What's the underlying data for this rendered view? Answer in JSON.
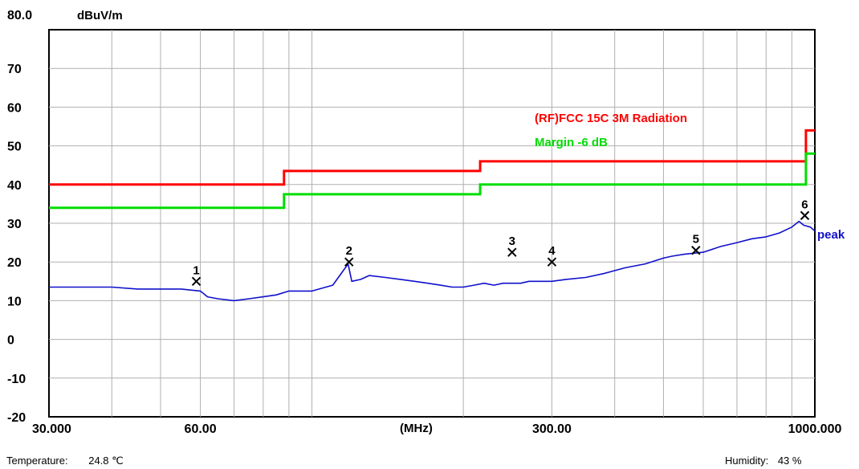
{
  "chart_data": {
    "type": "line",
    "y_unit": "dBuV/m",
    "x_unit": "(MHz)",
    "x_scale": "log",
    "xlim": [
      30,
      1000
    ],
    "ylim": [
      -20,
      80
    ],
    "y_top_label": "80.0",
    "y_ticks": [
      -20,
      -10,
      0,
      10,
      20,
      30,
      40,
      50,
      60,
      70
    ],
    "x_tick_labels": [
      {
        "value": 30,
        "text": "30.000"
      },
      {
        "value": 60,
        "text": "60.00"
      },
      {
        "value": 300,
        "text": "300.00"
      },
      {
        "value": 1000,
        "text": "1000.000"
      }
    ],
    "x_gridlines": [
      30,
      40,
      50,
      60,
      70,
      80,
      90,
      100,
      200,
      300,
      400,
      500,
      600,
      700,
      800,
      900,
      1000
    ],
    "grid": true,
    "limits": [
      {
        "name": "(RF)FCC 15C 3M Radiation",
        "color": "#ff0000",
        "steps": [
          [
            30,
            40.0
          ],
          [
            88,
            43.5
          ],
          [
            216,
            46.0
          ],
          [
            960,
            54.0
          ],
          [
            1000,
            54.0
          ]
        ]
      },
      {
        "name": "Margin -6 dB",
        "color": "#00dd00",
        "steps": [
          [
            30,
            34.0
          ],
          [
            88,
            37.5
          ],
          [
            216,
            40.0
          ],
          [
            960,
            48.0
          ],
          [
            1000,
            48.0
          ]
        ]
      }
    ],
    "series": [
      {
        "name": "peak",
        "color": "#1010cc",
        "x": [
          30,
          35,
          40,
          45,
          50,
          55,
          60,
          62,
          65,
          70,
          75,
          80,
          85,
          90,
          100,
          110,
          118,
          120,
          125,
          130,
          140,
          150,
          160,
          170,
          180,
          190,
          200,
          210,
          220,
          230,
          240,
          250,
          260,
          270,
          280,
          290,
          300,
          320,
          350,
          380,
          420,
          460,
          500,
          520,
          550,
          600,
          650,
          700,
          750,
          800,
          850,
          900,
          930,
          950,
          980,
          1000
        ],
        "y": [
          13.5,
          13.5,
          13.5,
          13.0,
          13.0,
          13.0,
          12.5,
          11.0,
          10.5,
          10.0,
          10.5,
          11.0,
          11.5,
          12.5,
          12.5,
          14.0,
          19.5,
          15.0,
          15.5,
          16.5,
          16.0,
          15.5,
          15.0,
          14.5,
          14.0,
          13.5,
          13.5,
          14.0,
          14.5,
          14.0,
          14.5,
          14.5,
          14.5,
          15.0,
          15.0,
          15.0,
          15.0,
          15.5,
          16.0,
          17.0,
          18.5,
          19.5,
          21.0,
          21.5,
          22.0,
          22.5,
          24.0,
          25.0,
          26.0,
          26.5,
          27.5,
          29.0,
          30.5,
          29.5,
          29.0,
          28.0
        ]
      }
    ],
    "markers": [
      {
        "label": "1",
        "x": 58.9,
        "y": 15.0
      },
      {
        "label": "2",
        "x": 118.5,
        "y": 20.0
      },
      {
        "label": "3",
        "x": 250.0,
        "y": 22.5
      },
      {
        "label": "4",
        "x": 300.0,
        "y": 20.0
      },
      {
        "label": "5",
        "x": 580.0,
        "y": 23.0
      },
      {
        "label": "6",
        "x": 955.0,
        "y": 32.0
      }
    ]
  },
  "footer": {
    "temperature_label": "Temperature:",
    "temperature_value": "24.8 ℃",
    "humidity_label": "Humidity:",
    "humidity_value": "43 %"
  }
}
